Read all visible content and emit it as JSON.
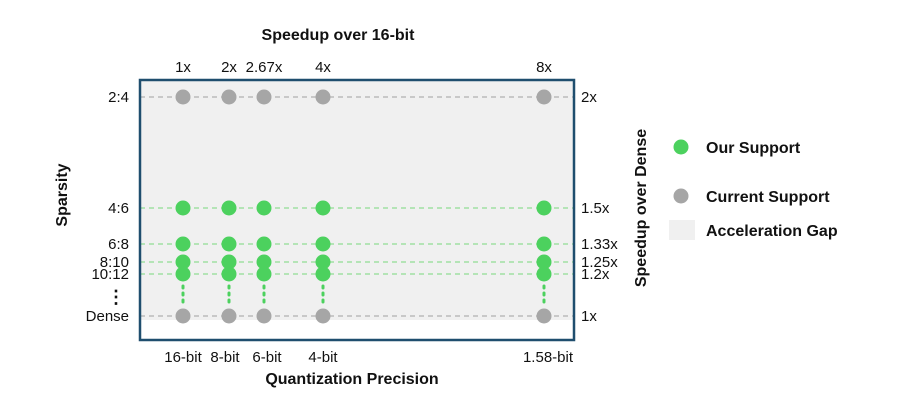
{
  "chart_data": {
    "type": "scatter",
    "top_axis_title": "Speedup over 16-bit",
    "xlabel": "Quantization Precision",
    "ylabel": "Sparsity",
    "right_axis_title": "Speedup over Dense",
    "x_categories": [
      "16-bit",
      "8-bit",
      "6-bit",
      "4-bit",
      "1.58-bit"
    ],
    "x_tick_labels": [
      "16-bit",
      "8-bit",
      "6-bit",
      "4-bit",
      "1.58-bit"
    ],
    "x_speedup_over_16bit": [
      "1x",
      "2x",
      "2.67x",
      "4x",
      "8x"
    ],
    "y_categories": [
      "2:4",
      "4:6",
      "6:8",
      "8:10",
      "10:12",
      "Dense"
    ],
    "y_tick_labels": [
      "2:4",
      "4:6",
      "6:8",
      "8:10",
      "10:12",
      "Dense"
    ],
    "y_speedup_over_dense": [
      "2x",
      "1.5x",
      "1.33x",
      "1.25x",
      "1.2x",
      "1x"
    ],
    "y_ellipsis": "⋮",
    "series": [
      {
        "name": "Our Support",
        "color": "#4cd15e",
        "points": [
          [
            "16-bit",
            "4:6"
          ],
          [
            "8-bit",
            "4:6"
          ],
          [
            "6-bit",
            "4:6"
          ],
          [
            "4-bit",
            "4:6"
          ],
          [
            "1.58-bit",
            "4:6"
          ],
          [
            "16-bit",
            "6:8"
          ],
          [
            "8-bit",
            "6:8"
          ],
          [
            "6-bit",
            "6:8"
          ],
          [
            "4-bit",
            "6:8"
          ],
          [
            "1.58-bit",
            "6:8"
          ],
          [
            "16-bit",
            "8:10"
          ],
          [
            "8-bit",
            "8:10"
          ],
          [
            "6-bit",
            "8:10"
          ],
          [
            "4-bit",
            "8:10"
          ],
          [
            "1.58-bit",
            "8:10"
          ],
          [
            "16-bit",
            "10:12"
          ],
          [
            "8-bit",
            "10:12"
          ],
          [
            "6-bit",
            "10:12"
          ],
          [
            "4-bit",
            "10:12"
          ],
          [
            "1.58-bit",
            "10:12"
          ]
        ]
      },
      {
        "name": "Current Support",
        "color": "#a6a6a6",
        "points": [
          [
            "16-bit",
            "2:4"
          ],
          [
            "8-bit",
            "2:4"
          ],
          [
            "6-bit",
            "2:4"
          ],
          [
            "4-bit",
            "2:4"
          ],
          [
            "1.58-bit",
            "2:4"
          ],
          [
            "16-bit",
            "Dense"
          ],
          [
            "8-bit",
            "Dense"
          ],
          [
            "6-bit",
            "Dense"
          ],
          [
            "4-bit",
            "Dense"
          ],
          [
            "1.58-bit",
            "Dense"
          ]
        ]
      }
    ],
    "legend": [
      {
        "label": "Our Support",
        "color": "#4cd15e",
        "kind": "dot"
      },
      {
        "label": "Current Support",
        "color": "#a6a6a6",
        "kind": "dot"
      },
      {
        "label": "Acceleration Gap",
        "color": "#f0f0f0",
        "kind": "box"
      }
    ],
    "legend_placement": "right",
    "frame_color": "#1f4e6e",
    "gap_color": "#f0f0f0",
    "guide_color_current": "#b0b0b0",
    "guide_color_ours": "#8fdc93"
  }
}
